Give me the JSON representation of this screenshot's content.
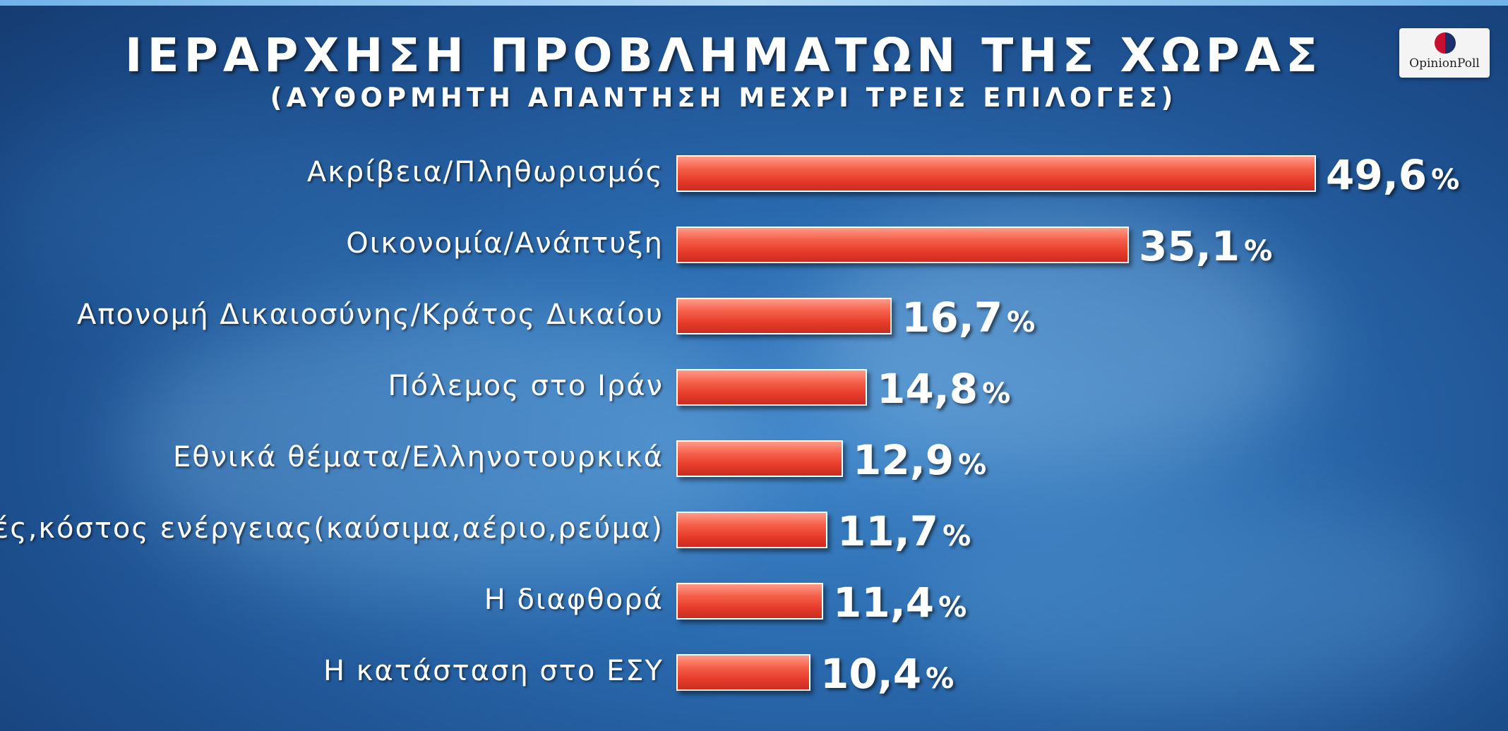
{
  "header": {
    "title": "ΙΕΡΑΡΧΗΣΗ ΠΡΟΒΛΗΜΑΤΩΝ ΤΗΣ ΧΩΡΑΣ",
    "subtitle": "(ΑΥΘΟΡΜΗΤΗ ΑΠΑΝΤΗΣΗ ΜΕΧΡΙ ΤΡΕΙΣ ΕΠΙΛΟΓΕΣ)"
  },
  "logo": {
    "text": "OpinionPoll"
  },
  "colors": {
    "bar": "#e63b2b",
    "bar_highlight": "#ff9a88",
    "background": "#2a6aae",
    "text": "#ffffff"
  },
  "chart_data": {
    "type": "bar",
    "orientation": "horizontal",
    "title": "ΙΕΡΑΡΧΗΣΗ ΠΡΟΒΛΗΜΑΤΩΝ ΤΗΣ ΧΩΡΑΣ",
    "subtitle": "(ΑΥΘΟΡΜΗΤΗ ΑΠΑΝΤΗΣΗ ΜΕΧΡΙ ΤΡΕΙΣ ΕΠΙΛΟΓΕΣ)",
    "unit": "%",
    "categories": [
      "Ακρίβεια/Πληθωρισμός",
      "Οικονομία/Ανάπτυξη",
      "Απονομή Δικαιοσύνης/Κράτος Δικαίου",
      "Πόλεμος στο Ιράν",
      "Εθνικά θέματα/Ελληνοτουρκικά",
      "Τιμές,κόστος ενέργειας(καύσιμα,αέριο,ρεύμα)",
      "Η διαφθορά",
      "Η κατάσταση στο ΕΣΥ"
    ],
    "values": [
      49.6,
      35.1,
      16.7,
      14.8,
      12.9,
      11.7,
      11.4,
      10.4
    ],
    "value_labels": [
      "49,6",
      "35,1",
      "16,7",
      "14,8",
      "12,9",
      "11,7",
      "11,4",
      "10,4"
    ],
    "xlim": [
      0,
      49.6
    ],
    "grid": false
  }
}
